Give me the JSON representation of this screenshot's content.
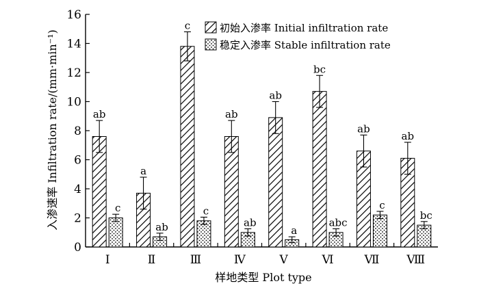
{
  "chart_data": {
    "type": "bar",
    "xlabel": "样地类型 Plot type",
    "ylabel": "入渗速率 Infiltration rate/(mm·min⁻¹)",
    "ylim": [
      0,
      16
    ],
    "yticks": [
      "0",
      "2",
      "4",
      "6",
      "8",
      "10",
      "12",
      "14",
      "16"
    ],
    "categories": [
      "Ⅰ",
      "Ⅱ",
      "Ⅲ",
      "Ⅳ",
      "Ⅴ",
      "Ⅵ",
      "Ⅶ",
      "Ⅷ"
    ],
    "legend_position": "top-right",
    "grid": false,
    "series": [
      {
        "name": "初始入渗率 Initial infiltration rate",
        "pattern": "diagonal-hatch",
        "values": [
          7.6,
          3.7,
          13.8,
          7.6,
          8.9,
          10.7,
          6.6,
          6.1
        ],
        "errors": [
          1.1,
          1.1,
          1.0,
          1.1,
          1.1,
          1.1,
          1.1,
          1.1
        ],
        "labels": [
          "ab",
          "a",
          "c",
          "ab",
          "ab",
          "bc",
          "ab",
          "ab"
        ]
      },
      {
        "name": "稳定入渗率 Stable infiltration rate",
        "pattern": "dots",
        "values": [
          2.0,
          0.7,
          1.8,
          1.0,
          0.5,
          1.0,
          2.2,
          1.5
        ],
        "errors": [
          0.25,
          0.25,
          0.25,
          0.25,
          0.2,
          0.25,
          0.25,
          0.25
        ],
        "labels": [
          "c",
          "ab",
          "c",
          "ab",
          "a",
          "abc",
          "c",
          "bc"
        ]
      }
    ]
  }
}
